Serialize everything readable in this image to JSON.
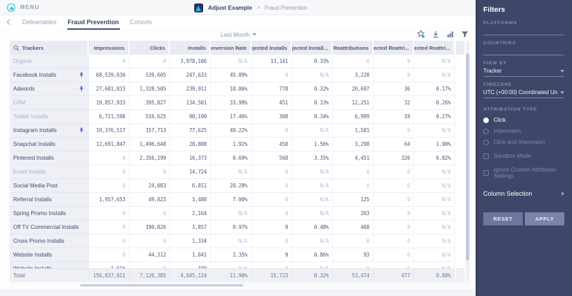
{
  "topbar": {
    "menu_label": "MENU",
    "app_name": "Adjust Example",
    "section": "Fraud Prevention"
  },
  "nav": {
    "tabs": [
      {
        "label": "Deliverables",
        "active": false
      },
      {
        "label": "Fraud Prevention",
        "active": true
      },
      {
        "label": "Cohorts",
        "active": false
      }
    ]
  },
  "toolbar": {
    "date_range": "Last Month"
  },
  "table": {
    "columns": [
      "Trackers",
      "Impressions",
      "Clicks",
      "Installs",
      "Conversion Rate",
      "Rejected Installs",
      "Rejected Install...",
      "Reattributions",
      "Rejected Reattri...",
      "Rejected Reattri..."
    ],
    "rows": [
      {
        "tracker": "Organic",
        "dimmed": true,
        "pinned": false,
        "values": [
          "0",
          "0",
          "3,978,106",
          "N/A",
          "13,141",
          "0.33%",
          "0",
          "0",
          "N/A"
        ]
      },
      {
        "tracker": "Facebook Installs",
        "dimmed": false,
        "pinned": true,
        "values": [
          "68,539,630",
          "539,605",
          "247,633",
          "45.89%",
          "0",
          "N/A",
          "3,228",
          "0",
          "N/A"
        ]
      },
      {
        "tracker": "Adwords",
        "dimmed": false,
        "pinned": true,
        "values": [
          "27,681,833",
          "1,328,505",
          "239,911",
          "18.06%",
          "778",
          "0.32%",
          "20,697",
          "36",
          "0.17%"
        ]
      },
      {
        "tracker": "CRM",
        "dimmed": true,
        "pinned": false,
        "values": [
          "19,857,933",
          "395,827",
          "134,501",
          "33.98%",
          "451",
          "0.33%",
          "12,251",
          "32",
          "0.26%"
        ]
      },
      {
        "tracker": "Twitter Installs",
        "dimmed": true,
        "pinned": false,
        "values": [
          "6,721,598",
          "516,625",
          "90,190",
          "17.46%",
          "308",
          "0.34%",
          "6,999",
          "19",
          "0.27%"
        ]
      },
      {
        "tracker": "Instagram Installs",
        "dimmed": false,
        "pinned": true,
        "values": [
          "19,376,517",
          "157,713",
          "77,625",
          "49.22%",
          "0",
          "N/A",
          "1,581",
          "0",
          "N/A"
        ]
      },
      {
        "tracker": "Snapchat Installs",
        "dimmed": false,
        "pinned": false,
        "values": [
          "12,691,847",
          "1,496,648",
          "28,808",
          "1.92%",
          "458",
          "1.56%",
          "3,298",
          "64",
          "1.90%"
        ]
      },
      {
        "tracker": "Pinterest Installs",
        "dimmed": false,
        "pinned": false,
        "values": [
          "0",
          "2,356,199",
          "16,373",
          "0.69%",
          "568",
          "3.35%",
          "4,451",
          "326",
          "6.82%"
        ]
      },
      {
        "tracker": "Email Installs",
        "dimmed": true,
        "pinned": false,
        "values": [
          "0",
          "0",
          "14,724",
          "N/A",
          "0",
          "N/A",
          "0",
          "0",
          "N/A"
        ]
      },
      {
        "tracker": "Social Media Post",
        "dimmed": false,
        "pinned": false,
        "values": [
          "0",
          "24,083",
          "6,811",
          "28.28%",
          "0",
          "N/A",
          "0",
          "0",
          "N/A"
        ]
      },
      {
        "tracker": "Referral Installs",
        "dimmed": false,
        "pinned": false,
        "values": [
          "1,957,653",
          "49,823",
          "3,488",
          "7.00%",
          "0",
          "N/A",
          "125",
          "0",
          "N/A"
        ]
      },
      {
        "tracker": "Spring Promo Installs",
        "dimmed": false,
        "pinned": false,
        "values": [
          "0",
          "0",
          "2,164",
          "N/A",
          "0",
          "N/A",
          "263",
          "0",
          "N/A"
        ]
      },
      {
        "tracker": "Off TV Commercial Installs",
        "dimmed": false,
        "pinned": false,
        "values": [
          "0",
          "190,826",
          "1,857",
          "0.97%",
          "9",
          "0.48%",
          "468",
          "0",
          "N/A"
        ]
      },
      {
        "tracker": "Cross Promo Installs",
        "dimmed": false,
        "pinned": false,
        "values": [
          "0",
          "0",
          "1,334",
          "N/A",
          "0",
          "N/A",
          "0",
          "0",
          "N/A"
        ]
      },
      {
        "tracker": "Website Installs",
        "dimmed": false,
        "pinned": false,
        "values": [
          "0",
          "44,312",
          "1,041",
          "2.35%",
          "9",
          "0.86%",
          "93",
          "0",
          "N/A"
        ]
      },
      {
        "tracker": "Website Installs",
        "dimmed": false,
        "pinned": false,
        "values": [
          "1,616",
          "0",
          "339",
          "N/A",
          "0",
          "N/A",
          "0",
          "0",
          "N/A"
        ]
      }
    ],
    "total": {
      "label": "Total",
      "values": [
        "156,837,011",
        "7,126,385",
        "4,845,124",
        "11.90%",
        "15,723",
        "0.32%",
        "53,474",
        "477",
        "0.88%"
      ]
    }
  },
  "filters": {
    "title": "Filters",
    "platforms_label": "PLATFORMS",
    "countries_label": "COUNTRIES",
    "view_by": {
      "label": "VIEW BY",
      "value": "Tracker"
    },
    "timezone": {
      "label": "TIMEZONE",
      "value": "UTC (+00:00) Coordinated Universal..."
    },
    "attribution_type": {
      "label": "ATTRIBUTION TYPE",
      "radios": [
        {
          "label": "Click",
          "selected": true
        },
        {
          "label": "Impression",
          "selected": false
        },
        {
          "label": "Click and Impression",
          "selected": false
        }
      ],
      "checkboxes": [
        {
          "label": "Sandbox Mode",
          "checked": false
        },
        {
          "label": "Ignore Custom Attribution Settings",
          "checked": false
        }
      ]
    },
    "column_selection_label": "Column Selection",
    "reset_label": "RESET",
    "apply_label": "APPLY"
  },
  "colors": {
    "accent_teal": "#1bc0d4",
    "panel_bg": "#3f4769",
    "pin_blue": "#5a67c9",
    "active_tab_underline": "#444e72"
  }
}
